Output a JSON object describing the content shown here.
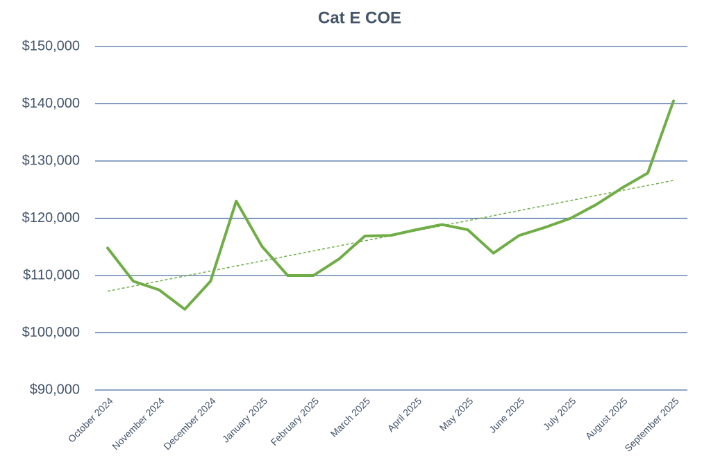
{
  "chart_data": {
    "type": "line",
    "title": "Cat E COE",
    "categories": [
      "October 2024",
      null,
      "November 2024",
      null,
      "December 2024",
      null,
      "January 2025",
      null,
      "February 2025",
      null,
      "March 2025",
      null,
      "April 2025",
      null,
      "May 2025",
      null,
      "June 2025",
      null,
      "July 2025",
      null,
      "August 2025",
      null,
      "September 2025"
    ],
    "series": [
      {
        "name": "Cat E COE",
        "color": "#70ad47",
        "values": [
          114800,
          109000,
          107500,
          104100,
          109000,
          123000,
          115100,
          110000,
          110000,
          112900,
          116900,
          117000,
          118000,
          118900,
          118000,
          113900,
          117000,
          118400,
          120000,
          122400,
          125300,
          127900,
          140500
        ]
      }
    ],
    "trendline": true,
    "ylim": [
      90000,
      150000
    ],
    "yticks": [
      {
        "value": 90000,
        "label": "$90,000"
      },
      {
        "value": 100000,
        "label": "$100,000"
      },
      {
        "value": 110000,
        "label": "$110,000"
      },
      {
        "value": 120000,
        "label": "$120,000"
      },
      {
        "value": 130000,
        "label": "$130,000"
      },
      {
        "value": 140000,
        "label": "$140,000"
      },
      {
        "value": 150000,
        "label": "$150,000"
      }
    ],
    "grid": true
  }
}
